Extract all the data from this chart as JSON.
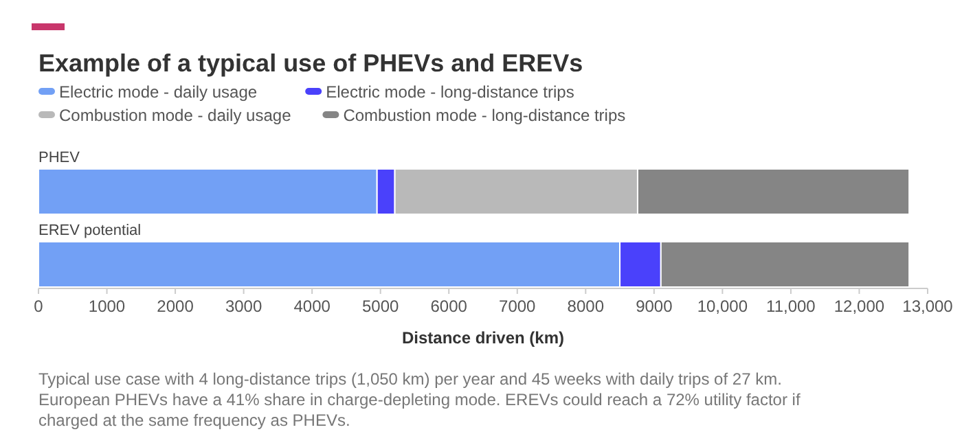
{
  "chart_data": {
    "type": "bar",
    "orientation": "horizontal",
    "stacked": true,
    "title": "Example of a typical use of PHEVs and EREVs",
    "xlabel": "Distance driven (km)",
    "categories": [
      "PHEV",
      "EREV potential"
    ],
    "series": [
      {
        "name": "Electric mode - daily usage",
        "color": "#72a0f5",
        "values": [
          4950,
          8500
        ]
      },
      {
        "name": "Electric mode - long-distance trips",
        "color": "#4a41fb",
        "values": [
          260,
          600
        ]
      },
      {
        "name": "Combustion mode - daily usage",
        "color": "#b9b9b9",
        "values": [
          3550,
          0
        ]
      },
      {
        "name": "Combustion mode - long-distance trips",
        "color": "#858585",
        "values": [
          3970,
          3630
        ]
      }
    ],
    "xlim": [
      0,
      13000
    ],
    "xticks": [
      0,
      1000,
      2000,
      3000,
      4000,
      5000,
      6000,
      7000,
      8000,
      9000,
      {
        "value": 10000,
        "label": "10,000"
      },
      {
        "value": 11000,
        "label": "11,000"
      },
      {
        "value": 12000,
        "label": "12,000"
      },
      {
        "value": 13000,
        "label": "13,000"
      }
    ],
    "grid": false,
    "legend": "top",
    "annotations": [
      "Typical use case with 4 long-distance trips (1,050 km) per year and 45 weeks with daily trips of 27 km.",
      "European PHEVs have a 41% share in charge-depleting mode. EREVs could reach a 72% utility factor if",
      "charged at the same frequency as PHEVs."
    ]
  }
}
